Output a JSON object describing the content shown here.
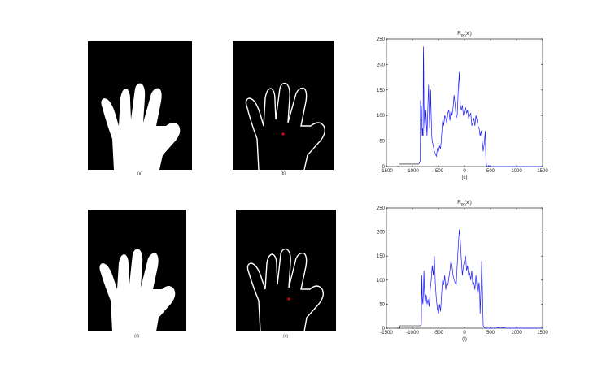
{
  "figure": {
    "captions": [
      "(a)",
      "(b)",
      "(c)",
      "(d)",
      "(e)",
      "(f)"
    ]
  },
  "colors": {
    "series": "#1a1aff",
    "background": "#000000",
    "hand": "#ffffff",
    "center_marker": "#e0000e"
  },
  "chart_data": [
    {
      "type": "line",
      "title": "Rpr(x')",
      "title_main": "R",
      "title_sub": "pr",
      "title_arg": "(x')",
      "xlabel": "(c)",
      "xlim": [
        -1500,
        1500
      ],
      "ylim": [
        0,
        250
      ],
      "xticks": [
        -1500,
        -1000,
        -500,
        0,
        500,
        1000,
        1500
      ],
      "xtick_labels": [
        "-1500",
        "-1000",
        "-500",
        "0",
        "500",
        "1000",
        "1500"
      ],
      "yticks": [
        0,
        50,
        100,
        150,
        200,
        250
      ],
      "grid": false,
      "baseline_segments": [
        {
          "x": [
            -1300,
            -1260,
            -1260,
            -880
          ],
          "y": [
            0,
            0,
            5,
            5
          ]
        }
      ],
      "series": [
        {
          "x": [
            -880,
            -850,
            -845,
            -835,
            -830,
            -825,
            -820,
            -810,
            -805,
            -795,
            -790,
            -785,
            -780,
            -770,
            -760,
            -750,
            -740,
            -730,
            -720,
            -710,
            -700,
            -690,
            -680,
            -670,
            -660,
            -650,
            -640,
            -630,
            -620,
            -610,
            -600,
            -580,
            -560,
            -540,
            -520,
            -500,
            -480,
            -460,
            -440,
            -420,
            -400,
            -380,
            -360,
            -340,
            -320,
            -300,
            -280,
            -260,
            -240,
            -220,
            -200,
            -180,
            -160,
            -140,
            -120,
            -100,
            -80,
            -60,
            -40,
            -20,
            0,
            20,
            40,
            60,
            80,
            100,
            120,
            140,
            160,
            180,
            200,
            220,
            240,
            260,
            280,
            300,
            320,
            340,
            360,
            380,
            400,
            410,
            420,
            430,
            450,
            460,
            500,
            600,
            700,
            800,
            900,
            1000,
            1100,
            1200,
            1300,
            1400,
            1500
          ],
          "y": [
            5,
            10,
            130,
            95,
            120,
            110,
            80,
            60,
            75,
            60,
            235,
            200,
            120,
            90,
            70,
            95,
            110,
            80,
            60,
            100,
            130,
            160,
            110,
            75,
            110,
            150,
            100,
            60,
            50,
            45,
            40,
            30,
            25,
            20,
            35,
            30,
            40,
            35,
            60,
            90,
            80,
            100,
            95,
            85,
            105,
            110,
            90,
            110,
            100,
            115,
            140,
            120,
            95,
            100,
            150,
            185,
            120,
            110,
            120,
            100,
            110,
            115,
            105,
            110,
            95,
            100,
            105,
            80,
            85,
            95,
            80,
            100,
            90,
            80,
            75,
            60,
            70,
            50,
            30,
            45,
            70,
            20,
            5,
            0,
            0,
            2,
            0,
            0,
            0,
            0,
            0,
            0,
            0,
            0,
            0,
            0,
            0
          ]
        }
      ]
    },
    {
      "type": "line",
      "title": "Rpr(x')",
      "title_main": "R",
      "title_sub": "pr",
      "title_arg": "(x')",
      "xlabel": "(f)",
      "xlim": [
        -1500,
        1500
      ],
      "ylim": [
        0,
        250
      ],
      "xticks": [
        -1500,
        -1000,
        -500,
        0,
        500,
        1000,
        1500
      ],
      "xtick_labels": [
        "-1500",
        "-1000",
        "-500",
        "0",
        "500",
        "1000",
        "1500"
      ],
      "yticks": [
        0,
        50,
        100,
        150,
        200,
        250
      ],
      "grid": false,
      "baseline_segments": [
        {
          "x": [
            -1300,
            -1240,
            -1240,
            -850
          ],
          "y": [
            0,
            0,
            5,
            5
          ]
        }
      ],
      "series": [
        {
          "x": [
            -850,
            -830,
            -820,
            -810,
            -800,
            -790,
            -780,
            -770,
            -760,
            -750,
            -740,
            -730,
            -720,
            -700,
            -680,
            -660,
            -640,
            -620,
            -600,
            -580,
            -560,
            -540,
            -520,
            -500,
            -480,
            -460,
            -440,
            -420,
            -400,
            -380,
            -360,
            -340,
            -320,
            -300,
            -280,
            -260,
            -240,
            -220,
            -200,
            -180,
            -160,
            -140,
            -120,
            -100,
            -80,
            -60,
            -40,
            -20,
            0,
            20,
            40,
            60,
            80,
            100,
            120,
            140,
            160,
            180,
            200,
            220,
            240,
            260,
            280,
            290,
            300,
            310,
            320,
            330,
            340,
            360,
            400,
            500,
            600,
            700,
            800,
            900,
            1000,
            1100,
            1200,
            1300,
            1400,
            1500
          ],
          "y": [
            5,
            8,
            110,
            60,
            50,
            70,
            120,
            80,
            60,
            55,
            70,
            65,
            50,
            60,
            45,
            80,
            100,
            130,
            110,
            150,
            90,
            60,
            40,
            30,
            50,
            35,
            70,
            100,
            90,
            110,
            80,
            95,
            90,
            105,
            120,
            140,
            130,
            110,
            100,
            95,
            90,
            130,
            170,
            205,
            180,
            140,
            110,
            130,
            140,
            150,
            120,
            130,
            110,
            115,
            100,
            120,
            90,
            95,
            80,
            110,
            85,
            70,
            95,
            80,
            30,
            60,
            90,
            140,
            100,
            5,
            0,
            0,
            0,
            2,
            0,
            0,
            0,
            0,
            0,
            0,
            0,
            0
          ]
        }
      ]
    }
  ]
}
